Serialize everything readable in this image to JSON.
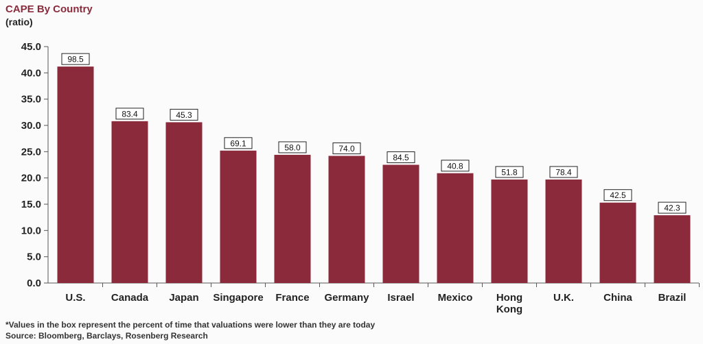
{
  "chart_data": {
    "type": "bar",
    "title": "CAPE By Country",
    "subtitle": "(ratio)",
    "categories": [
      [
        "U.S."
      ],
      [
        "Canada"
      ],
      [
        "Japan"
      ],
      [
        "Singapore"
      ],
      [
        "France"
      ],
      [
        "Germany"
      ],
      [
        "Israel"
      ],
      [
        "Mexico"
      ],
      [
        "Hong",
        "Kong"
      ],
      [
        "U.K."
      ],
      [
        "China"
      ],
      [
        "Brazil"
      ]
    ],
    "values": [
      41.2,
      30.8,
      30.6,
      25.2,
      24.4,
      24.2,
      22.5,
      20.9,
      19.7,
      19.7,
      15.3,
      12.9
    ],
    "box_labels": [
      "98.5",
      "83.4",
      "45.3",
      "69.1",
      "58.0",
      "74.0",
      "84.5",
      "40.8",
      "51.8",
      "78.4",
      "42.5",
      "42.3"
    ],
    "ylim": [
      0,
      45
    ],
    "yticks": [
      "0.0",
      "5.0",
      "10.0",
      "15.0",
      "20.0",
      "25.0",
      "30.0",
      "35.0",
      "40.0",
      "45.0"
    ],
    "bar_color": "#8b2a3b",
    "grid": false,
    "footnote": "*Values in the box represent the percent of time that valuations were lower than they are today",
    "source": "Source: Bloomberg, Barclays, Rosenberg Research"
  }
}
